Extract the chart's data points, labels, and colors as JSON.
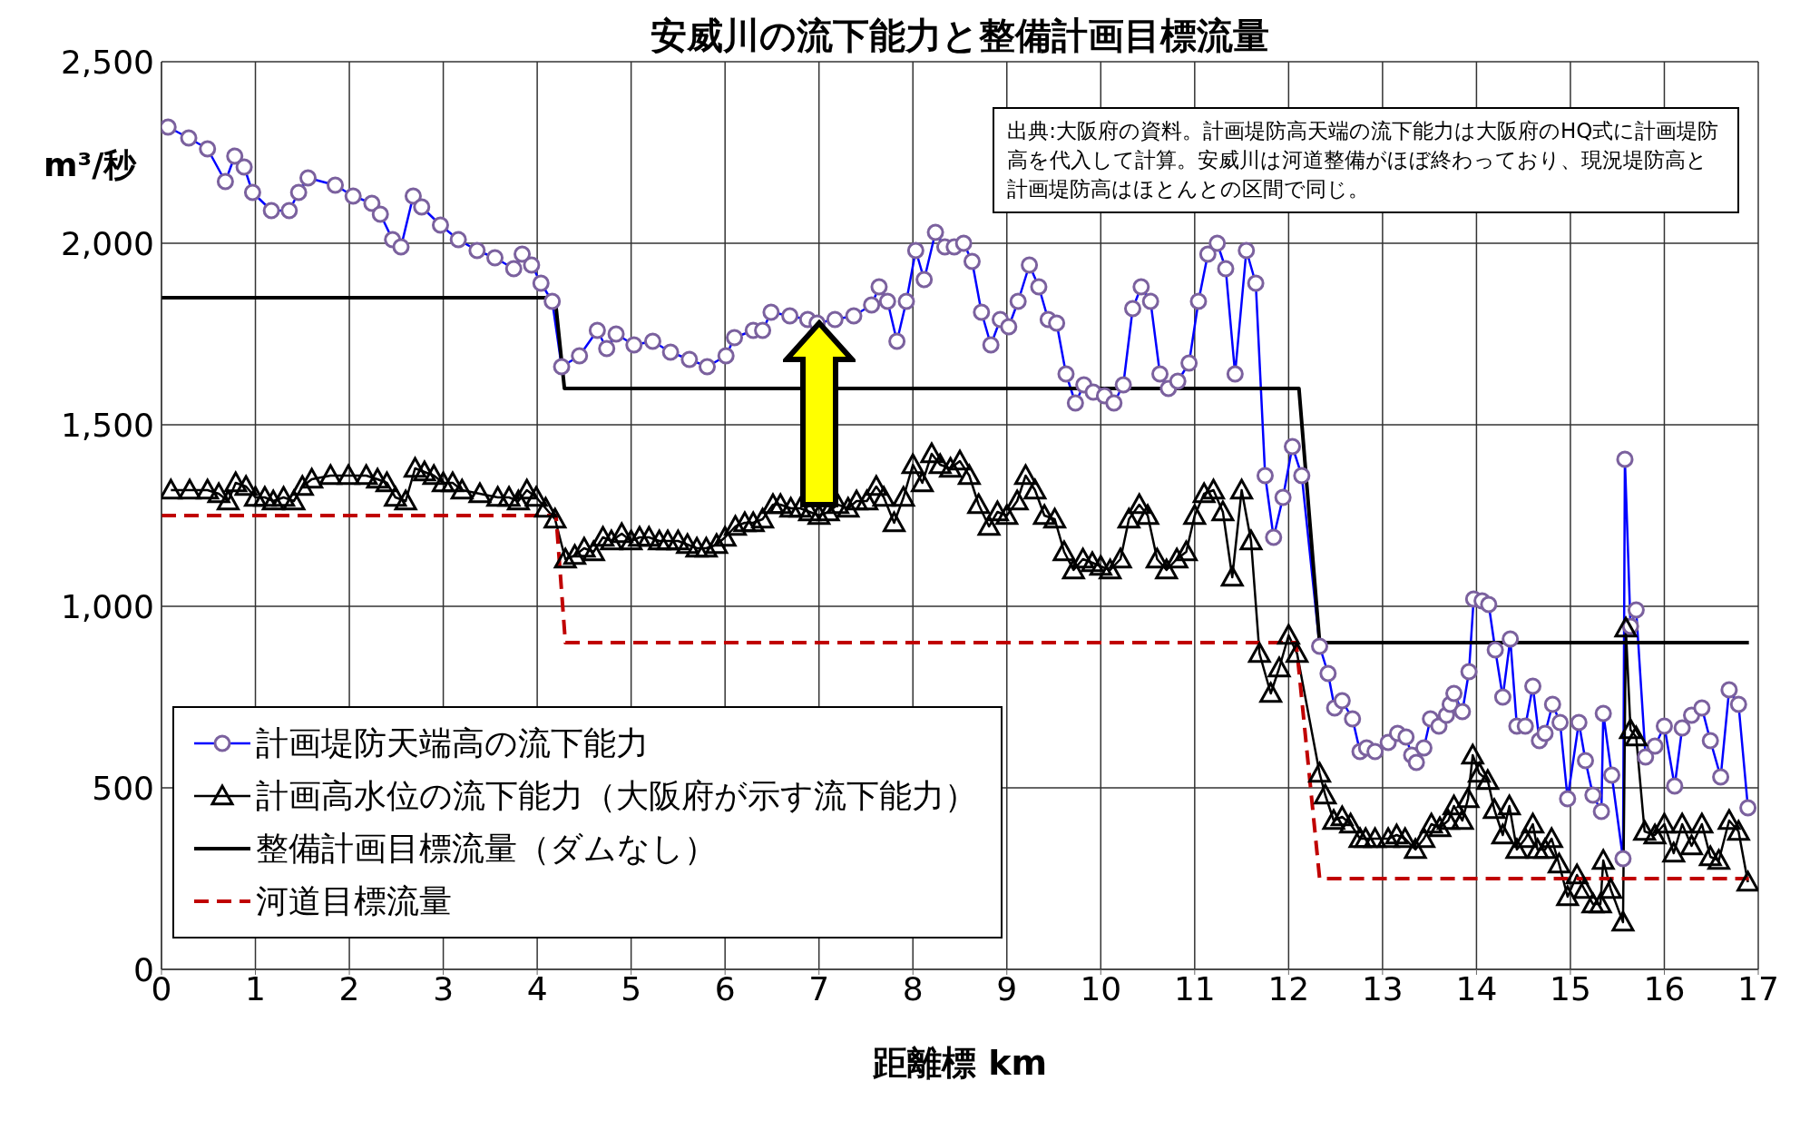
{
  "chart_data": {
    "type": "line",
    "title": "安威川の流下能力と整備計画目標流量",
    "xlabel": "距離標 km",
    "ylabel": "m³/秒",
    "annotations": [
      "出典:大阪府の資料。計画堤防高天端の流下能力は大阪府のHQ式に計画堤防高を代入して計算。安威川は河道整備がほぼ終わっており、現況堤防高と計画堤防高はほとんとの区間で同じ。"
    ],
    "xlim": [
      0,
      17
    ],
    "xticks": [
      0,
      1,
      2,
      3,
      4,
      5,
      6,
      7,
      8,
      9,
      10,
      11,
      12,
      13,
      14,
      15,
      16,
      17
    ],
    "ylim": [
      0,
      2500
    ],
    "yticks": [
      0,
      500,
      {
        "value": 1000,
        "label": "1,000"
      },
      {
        "value": 1500,
        "label": "1,500"
      },
      {
        "value": 2000,
        "label": "2,000"
      },
      {
        "value": 2500,
        "label": "2,500"
      }
    ],
    "grid": true,
    "legend": "bottom left",
    "series": [
      {
        "name": "計画堤防天端高の流下能力",
        "color": "#0000ff",
        "marker": "circle",
        "line_style": "solid",
        "x": [
          0.07,
          0.29,
          0.49,
          0.68,
          0.78,
          0.88,
          0.97,
          1.17,
          1.36,
          1.46,
          1.56,
          1.85,
          2.04,
          2.24,
          2.33,
          2.46,
          2.55,
          2.68,
          2.77,
          2.97,
          3.16,
          3.36,
          3.55,
          3.75,
          3.84,
          3.94,
          4.04,
          4.16,
          4.26,
          4.45,
          4.64,
          4.74,
          4.84,
          5.03,
          5.23,
          5.42,
          5.62,
          5.81,
          6.01,
          6.1,
          6.3,
          6.4,
          6.49,
          6.69,
          6.88,
          6.98,
          7.17,
          7.37,
          7.56,
          7.64,
          7.73,
          7.83,
          7.93,
          8.03,
          8.12,
          8.24,
          8.34,
          8.44,
          8.54,
          8.63,
          8.73,
          8.83,
          8.93,
          9.02,
          9.12,
          9.24,
          9.34,
          9.44,
          9.53,
          9.63,
          9.73,
          9.82,
          9.92,
          10.04,
          10.14,
          10.24,
          10.34,
          10.43,
          10.53,
          10.63,
          10.72,
          10.82,
          10.94,
          11.04,
          11.14,
          11.24,
          11.33,
          11.43,
          11.55,
          11.65,
          11.75,
          11.84,
          11.94,
          12.04,
          12.14,
          12.33,
          12.42,
          12.49,
          12.57,
          12.68,
          12.76,
          12.83,
          12.92,
          13.06,
          13.16,
          13.25,
          13.31,
          13.36,
          13.44,
          13.51,
          13.6,
          13.68,
          13.72,
          13.76,
          13.85,
          13.92,
          13.97,
          14.06,
          14.13,
          14.2,
          14.28,
          14.36,
          14.43,
          14.52,
          14.6,
          14.67,
          14.73,
          14.81,
          14.89,
          14.97,
          15.09,
          15.16,
          15.24,
          15.33,
          15.35,
          15.44,
          15.56,
          15.58,
          15.64,
          15.7,
          15.8,
          15.9,
          16.0,
          16.11,
          16.19,
          16.29,
          16.4,
          16.49,
          16.6,
          16.69,
          16.79,
          16.89
        ],
        "values": [
          2320,
          2290,
          2260,
          2170,
          2240,
          2210,
          2140,
          2090,
          2090,
          2140,
          2180,
          2160,
          2130,
          2110,
          2080,
          2010,
          1990,
          2130,
          2100,
          2050,
          2010,
          1980,
          1960,
          1930,
          1970,
          1940,
          1890,
          1840,
          1660,
          1690,
          1760,
          1710,
          1750,
          1720,
          1730,
          1700,
          1680,
          1660,
          1690,
          1740,
          1760,
          1760,
          1810,
          1800,
          1790,
          1780,
          1790,
          1800,
          1830,
          1880,
          1840,
          1730,
          1840,
          1980,
          1900,
          2030,
          1990,
          1990,
          2000,
          1950,
          1810,
          1720,
          1790,
          1770,
          1840,
          1940,
          1880,
          1790,
          1780,
          1640,
          1560,
          1610,
          1590,
          1580,
          1560,
          1610,
          1820,
          1880,
          1840,
          1640,
          1600,
          1620,
          1670,
          1840,
          1970,
          2000,
          1930,
          1640,
          1980,
          1890,
          1360,
          1190,
          1300,
          1440,
          1360,
          890,
          815,
          720,
          740,
          690,
          600,
          610,
          600,
          625,
          650,
          640,
          590,
          570,
          610,
          690,
          670,
          700,
          730,
          760,
          710,
          820,
          1020,
          1015,
          1005,
          880,
          750,
          910,
          670,
          670,
          780,
          630,
          650,
          730,
          680,
          470,
          680,
          575,
          480,
          435,
          705,
          535,
          305,
          1405,
          945,
          990,
          585,
          615,
          670,
          505,
          665,
          700,
          720,
          630,
          530,
          770,
          730,
          445
        ]
      },
      {
        "name": "計画高水位の流下能力（大阪府が示す流下能力）",
        "color": "#000000",
        "marker": "triangle",
        "line_style": "solid",
        "x": [
          0.1,
          0.3,
          0.49,
          0.61,
          0.71,
          0.79,
          0.9,
          1.0,
          1.1,
          1.19,
          1.3,
          1.41,
          1.5,
          1.6,
          1.8,
          1.99,
          2.18,
          2.3,
          2.4,
          2.49,
          2.6,
          2.7,
          2.8,
          2.9,
          3.0,
          3.1,
          3.2,
          3.39,
          3.58,
          3.7,
          3.8,
          3.89,
          3.99,
          4.09,
          4.19,
          4.3,
          4.4,
          4.5,
          4.6,
          4.7,
          4.79,
          4.9,
          5.0,
          5.09,
          5.19,
          5.3,
          5.39,
          5.5,
          5.6,
          5.7,
          5.8,
          5.91,
          6.0,
          6.11,
          6.21,
          6.3,
          6.4,
          6.51,
          6.59,
          6.7,
          6.8,
          6.9,
          7.0,
          7.1,
          7.2,
          7.31,
          7.4,
          7.51,
          7.61,
          7.69,
          7.8,
          7.9,
          8.0,
          8.1,
          8.2,
          8.29,
          8.4,
          8.5,
          8.6,
          8.7,
          8.81,
          8.9,
          9.0,
          9.11,
          9.2,
          9.3,
          9.4,
          9.51,
          9.61,
          9.71,
          9.81,
          9.91,
          10.0,
          10.1,
          10.21,
          10.3,
          10.41,
          10.5,
          10.6,
          10.7,
          10.81,
          10.91,
          11.0,
          11.1,
          11.2,
          11.3,
          11.4,
          11.5,
          11.6,
          11.69,
          11.81,
          11.9,
          12.0,
          12.09,
          12.33,
          12.39,
          12.48,
          12.57,
          12.66,
          12.76,
          12.82,
          12.92,
          13.06,
          13.15,
          13.24,
          13.35,
          13.44,
          13.52,
          13.61,
          13.7,
          13.76,
          13.85,
          13.91,
          13.96,
          14.03,
          14.12,
          14.19,
          14.28,
          14.35,
          14.43,
          14.52,
          14.6,
          14.65,
          14.73,
          14.8,
          14.88,
          14.97,
          15.07,
          15.15,
          15.24,
          15.32,
          15.35,
          15.43,
          15.56,
          15.59,
          15.64,
          15.7,
          15.79,
          15.9,
          16.0,
          16.1,
          16.19,
          16.29,
          16.4,
          16.49,
          16.58,
          16.69,
          16.79,
          16.89
        ],
        "values": [
          1320,
          1320,
          1320,
          1310,
          1290,
          1340,
          1330,
          1300,
          1300,
          1290,
          1300,
          1290,
          1330,
          1350,
          1360,
          1360,
          1360,
          1350,
          1340,
          1300,
          1290,
          1380,
          1370,
          1360,
          1340,
          1340,
          1320,
          1310,
          1300,
          1300,
          1290,
          1320,
          1300,
          1270,
          1240,
          1130,
          1140,
          1160,
          1150,
          1190,
          1180,
          1200,
          1180,
          1190,
          1190,
          1180,
          1180,
          1180,
          1170,
          1160,
          1160,
          1170,
          1190,
          1220,
          1230,
          1230,
          1240,
          1280,
          1280,
          1270,
          1270,
          1260,
          1250,
          1260,
          1280,
          1270,
          1290,
          1290,
          1330,
          1300,
          1230,
          1300,
          1390,
          1340,
          1420,
          1390,
          1380,
          1400,
          1360,
          1280,
          1220,
          1260,
          1250,
          1290,
          1360,
          1320,
          1250,
          1240,
          1150,
          1100,
          1130,
          1120,
          1110,
          1100,
          1130,
          1240,
          1280,
          1250,
          1130,
          1100,
          1130,
          1150,
          1250,
          1310,
          1320,
          1260,
          1080,
          1320,
          1180,
          870,
          760,
          830,
          920,
          870,
          540,
          480,
          410,
          420,
          400,
          360,
          360,
          360,
          360,
          370,
          360,
          330,
          360,
          400,
          390,
          410,
          450,
          410,
          470,
          590,
          540,
          520,
          440,
          370,
          450,
          330,
          360,
          400,
          330,
          330,
          360,
          290,
          200,
          260,
          220,
          180,
          180,
          300,
          220,
          130,
          940,
          660,
          640,
          380,
          370,
          400,
          320,
          400,
          340,
          400,
          310,
          300,
          410,
          380,
          240
        ]
      },
      {
        "name": "整備計画目標流量（ダムなし）",
        "color": "#000000",
        "marker": "none",
        "line_style": "solid",
        "x": [
          0,
          4.19,
          4.29,
          12.11,
          12.33,
          16.9
        ],
        "values": [
          1850,
          1850,
          1600,
          1600,
          900,
          900
        ]
      },
      {
        "name": "河道目標流量",
        "color": "#c00000",
        "marker": "none",
        "line_style": "dashed",
        "x": [
          0,
          4.2,
          4.3,
          12.08,
          12.33,
          16.9
        ],
        "values": [
          1250,
          1250,
          900,
          900,
          250,
          250
        ]
      }
    ]
  }
}
